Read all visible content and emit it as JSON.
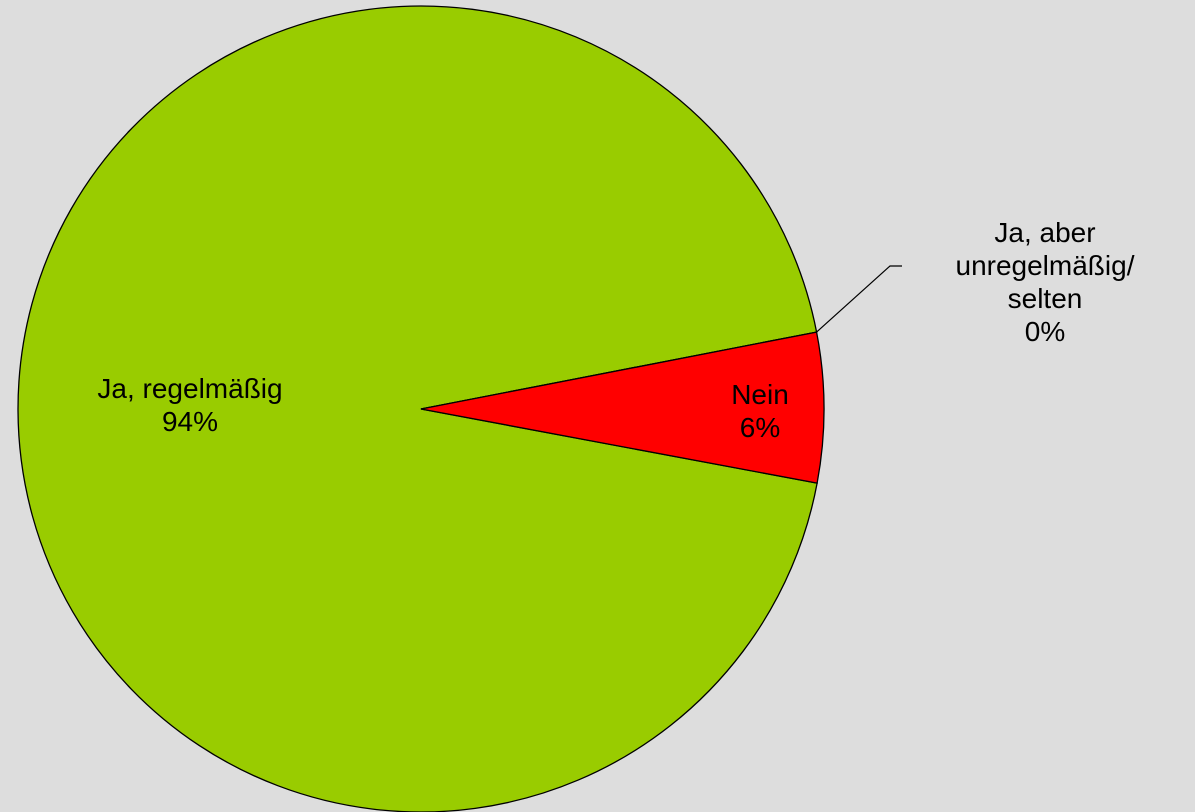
{
  "chart_data": {
    "type": "pie",
    "categories": [
      "Ja, regelmäßig",
      "Ja, aber unregelmäßig/ selten",
      "Nein"
    ],
    "values": [
      94,
      0,
      6
    ],
    "value_labels": [
      "94%",
      "0%",
      "6%"
    ],
    "colors": [
      "#99cc00",
      "#ffff99",
      "#ff0000"
    ]
  }
}
